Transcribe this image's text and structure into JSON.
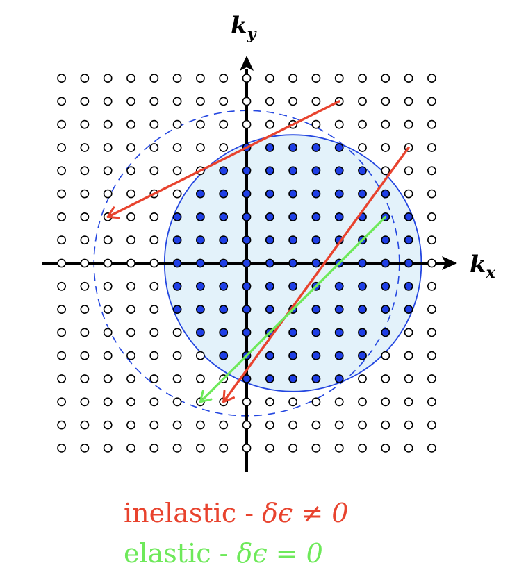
{
  "axes": {
    "x_label": "k",
    "x_sub": "x",
    "y_label": "k",
    "y_sub": "y"
  },
  "legend": {
    "inelastic": {
      "word": "inelastic - ",
      "math": "δϵ ≠ 0",
      "color": "#e8432e"
    },
    "elastic": {
      "word": "elastic - ",
      "math": "δϵ = 0",
      "color": "#6ee95a"
    }
  },
  "colors": {
    "filled_dot": "#1f3fe6",
    "empty_dot": "#ffffff",
    "sea": "#e3f2fa",
    "circle_stroke": "#2346e0",
    "axis": "#000000"
  },
  "lattice": {
    "cols": 17,
    "rows": 17,
    "origin_col": 8,
    "origin_row": 8
  },
  "fermi_sea": {
    "center": [
      2,
      0
    ],
    "radius": 5.55
  },
  "dashed_shell": {
    "center": [
      0,
      0
    ],
    "radius": 6.6
  },
  "arrows": [
    {
      "name": "inelastic-arrow-1",
      "kind": "inelastic",
      "from": [
        4,
        7
      ],
      "to": [
        -6,
        2
      ]
    },
    {
      "name": "inelastic-arrow-2",
      "kind": "inelastic",
      "from": [
        7,
        5
      ],
      "to": [
        -1,
        -6
      ]
    },
    {
      "name": "elastic-arrow",
      "kind": "elastic",
      "from": [
        6,
        2
      ],
      "to": [
        -2,
        -6
      ]
    }
  ]
}
